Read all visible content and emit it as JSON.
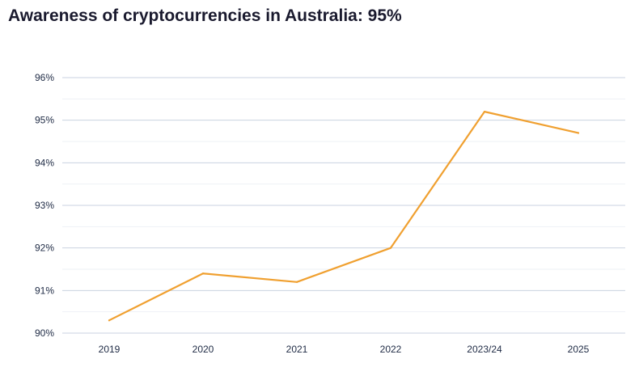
{
  "chart_data": {
    "type": "line",
    "title": "Awareness of cryptocurrencies in Australia: 95%",
    "xlabel": "",
    "ylabel": "",
    "categories": [
      "2019",
      "2020",
      "2021",
      "2022",
      "2023/24",
      "2025"
    ],
    "series": [
      {
        "values": [
          90.3,
          91.4,
          91.2,
          92.0,
          95.2,
          94.7
        ]
      }
    ],
    "ylim": [
      90,
      96
    ],
    "yticks": [
      {
        "value": 90,
        "label": "90%"
      },
      {
        "value": 91,
        "label": "91%"
      },
      {
        "value": 92,
        "label": "92%"
      },
      {
        "value": 93,
        "label": "93%"
      },
      {
        "value": 94,
        "label": "94%"
      },
      {
        "value": 95,
        "label": "95%"
      },
      {
        "value": 96,
        "label": "96%"
      }
    ],
    "grid": true,
    "legend": "none",
    "colors": {
      "line": "#f0a030",
      "grid": "#c9d2e0",
      "grid_minor": "#eef1f6",
      "text": "#1e2a44"
    }
  }
}
